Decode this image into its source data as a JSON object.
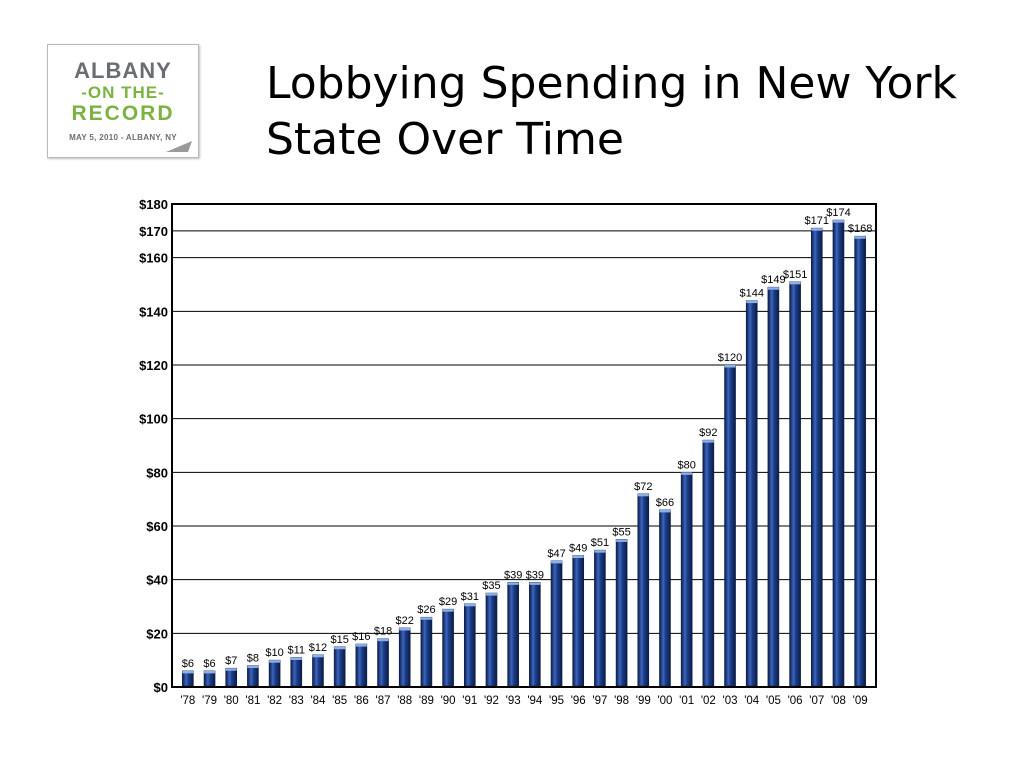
{
  "logo": {
    "line1": "ALBANY",
    "line2": "-ON THE-",
    "line3": "RECORD",
    "line4": "MAY 5, 2010 - ALBANY, NY"
  },
  "slide": {
    "title": "Lobbying Spending in New York State Over Time"
  },
  "colors": {
    "bar": "#1c3f8a",
    "bar_dark": "#0b1c45",
    "bar_light": "#8fb0e6",
    "grid": "#000000"
  },
  "chart_data": {
    "type": "bar",
    "title": "",
    "xlabel": "",
    "ylabel": "",
    "ylim": [
      0,
      180
    ],
    "grid": true,
    "y_ticks": [
      0,
      20,
      40,
      60,
      80,
      100,
      120,
      140,
      160,
      170,
      180
    ],
    "y_tick_labels": [
      "$0",
      "$20",
      "$40",
      "$60",
      "$80",
      "$100",
      "$120",
      "$140",
      "$160",
      "$170",
      "$180"
    ],
    "categories": [
      "'78",
      "'79",
      "'80",
      "'81",
      "'82",
      "'83",
      "'84",
      "'85",
      "'86",
      "'87",
      "'88",
      "'89",
      "'90",
      "'91",
      "'92",
      "'93",
      "'94",
      "'95",
      "'96",
      "'97",
      "'98",
      "'99",
      "'00",
      "'01",
      "'02",
      "'03",
      "'04",
      "'05",
      "'06",
      "'07",
      "'08",
      "'09"
    ],
    "values": [
      6,
      6,
      7,
      8,
      10,
      11,
      12,
      15,
      16,
      18,
      22,
      26,
      29,
      31,
      35,
      39,
      39,
      47,
      49,
      51,
      55,
      72,
      66,
      80,
      92,
      120,
      144,
      149,
      151,
      171,
      174,
      168
    ],
    "data_labels": [
      "$6",
      "$6",
      "$7",
      "$8",
      "$10",
      "$11",
      "$12",
      "$15",
      "$16",
      "$18",
      "$22",
      "$26",
      "$29",
      "$31",
      "$35",
      "$39",
      "$39",
      "$47",
      "$49",
      "$51",
      "$55",
      "$72",
      "$66",
      "$80",
      "$92",
      "$120",
      "$144",
      "$149",
      "$151",
      "$171",
      "$174",
      "$168"
    ]
  }
}
